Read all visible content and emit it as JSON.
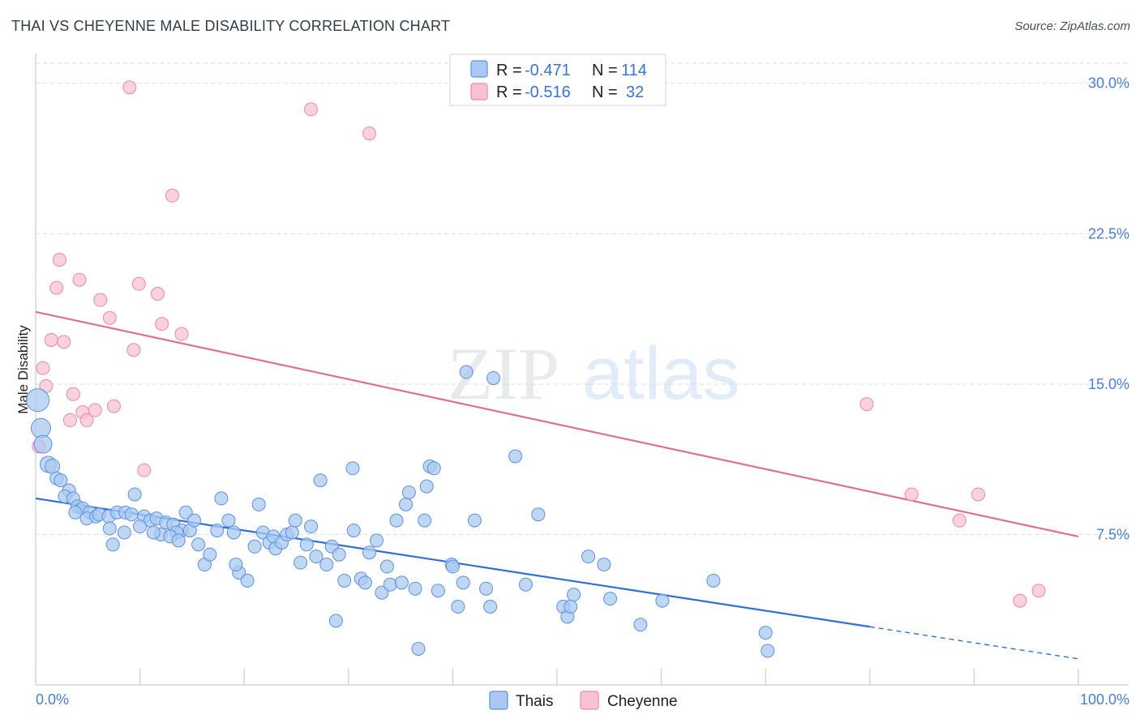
{
  "title": "THAI VS CHEYENNE MALE DISABILITY CORRELATION CHART",
  "source": "Source: ZipAtlas.com",
  "watermark": {
    "part1": "ZIP",
    "part2": "atlas"
  },
  "colors": {
    "thais_fill": "#aac8f2",
    "thais_stroke": "#5b93dd",
    "thais_line": "#2f6fd6",
    "cheyenne_fill": "#f7c3d1",
    "cheyenne_stroke": "#e98aa6",
    "cheyenne_line": "#e0708f",
    "tick_label": "#4a7fd0",
    "grid": "#d9dde3"
  },
  "legend": {
    "rows": [
      {
        "r_label": "R = ",
        "r_value": "-0.471",
        "n_label": "N = ",
        "n_value": "114"
      },
      {
        "r_label": "R = ",
        "r_value": "-0.516",
        "n_label": "N = ",
        "n_value": "32"
      }
    ]
  },
  "chart_data": {
    "type": "scatter",
    "title": "THAI VS CHEYENNE MALE DISABILITY CORRELATION CHART",
    "xlabel": "",
    "ylabel": "Male Disability",
    "xlim": [
      0,
      100
    ],
    "ylim": [
      0,
      31
    ],
    "x_tick_labels": [
      "0.0%",
      "100.0%"
    ],
    "y_ticks": [
      7.5,
      15.0,
      22.5,
      30.0
    ],
    "y_tick_labels": [
      "7.5%",
      "15.0%",
      "22.5%",
      "30.0%"
    ],
    "grid": true,
    "legend_position": "top-center",
    "series": [
      {
        "name": "Thais",
        "r": -0.471,
        "n": 114,
        "trend": {
          "x0": 0,
          "y0": 9.3,
          "x1": 100,
          "y1": 1.3,
          "solid_until": 80
        },
        "points": [
          [
            0.2,
            14.2,
            14
          ],
          [
            0.5,
            12.8,
            12
          ],
          [
            0.7,
            12.0,
            11
          ],
          [
            1.2,
            11.0,
            10
          ],
          [
            1.6,
            10.9,
            9
          ],
          [
            2.0,
            10.3,
            8
          ],
          [
            2.4,
            10.2,
            8
          ],
          [
            3.2,
            9.7,
            8
          ],
          [
            2.8,
            9.4,
            8
          ],
          [
            3.6,
            9.3,
            8
          ],
          [
            4.0,
            8.9,
            8
          ],
          [
            4.5,
            8.8,
            8
          ],
          [
            5.2,
            8.6,
            8
          ],
          [
            3.8,
            8.6,
            8
          ],
          [
            4.9,
            8.3,
            8
          ],
          [
            5.8,
            8.4,
            8
          ],
          [
            6.1,
            8.5,
            8
          ],
          [
            7.0,
            8.4,
            8
          ],
          [
            7.8,
            8.6,
            8
          ],
          [
            8.6,
            8.6,
            8
          ],
          [
            9.2,
            8.5,
            8
          ],
          [
            9.5,
            9.5,
            8
          ],
          [
            10.4,
            8.4,
            8
          ],
          [
            11.0,
            8.2,
            8
          ],
          [
            11.6,
            8.3,
            8
          ],
          [
            12.5,
            8.1,
            8
          ],
          [
            13.2,
            8.0,
            8
          ],
          [
            14.0,
            7.7,
            8
          ],
          [
            14.8,
            7.7,
            8
          ],
          [
            13.5,
            7.6,
            8
          ],
          [
            12.0,
            7.5,
            8
          ],
          [
            11.3,
            7.6,
            8
          ],
          [
            10.0,
            7.9,
            8
          ],
          [
            8.5,
            7.6,
            8
          ],
          [
            7.1,
            7.8,
            8
          ],
          [
            7.4,
            7.0,
            8
          ],
          [
            12.9,
            7.4,
            8
          ],
          [
            13.7,
            7.2,
            8
          ],
          [
            14.4,
            8.6,
            8
          ],
          [
            15.2,
            8.2,
            8
          ],
          [
            15.6,
            7.0,
            8
          ],
          [
            16.2,
            6.0,
            8
          ],
          [
            16.7,
            6.5,
            8
          ],
          [
            17.4,
            7.7,
            8
          ],
          [
            17.8,
            9.3,
            8
          ],
          [
            18.5,
            8.2,
            8
          ],
          [
            19.0,
            7.6,
            8
          ],
          [
            19.5,
            5.6,
            8
          ],
          [
            19.2,
            6.0,
            8
          ],
          [
            20.3,
            5.2,
            8
          ],
          [
            21.0,
            6.9,
            8
          ],
          [
            21.4,
            9.0,
            8
          ],
          [
            21.8,
            7.6,
            8
          ],
          [
            22.4,
            7.1,
            8
          ],
          [
            22.8,
            7.4,
            8
          ],
          [
            23.0,
            6.8,
            8
          ],
          [
            23.6,
            7.1,
            8
          ],
          [
            24.1,
            7.5,
            8
          ],
          [
            24.6,
            7.6,
            8
          ],
          [
            24.9,
            8.2,
            8
          ],
          [
            25.4,
            6.1,
            8
          ],
          [
            26.0,
            7.0,
            8
          ],
          [
            26.4,
            7.9,
            8
          ],
          [
            26.9,
            6.4,
            8
          ],
          [
            27.3,
            10.2,
            8
          ],
          [
            27.9,
            6.0,
            8
          ],
          [
            28.4,
            6.9,
            8
          ],
          [
            28.8,
            3.2,
            8
          ],
          [
            29.1,
            6.5,
            8
          ],
          [
            29.6,
            5.2,
            8
          ],
          [
            30.5,
            7.7,
            8
          ],
          [
            30.4,
            10.8,
            8
          ],
          [
            31.2,
            5.3,
            8
          ],
          [
            31.6,
            5.1,
            8
          ],
          [
            32.0,
            6.6,
            8
          ],
          [
            32.7,
            7.2,
            8
          ],
          [
            33.2,
            4.6,
            8
          ],
          [
            33.7,
            5.9,
            8
          ],
          [
            34.0,
            5.0,
            8
          ],
          [
            34.6,
            8.2,
            8
          ],
          [
            35.1,
            5.1,
            8
          ],
          [
            35.5,
            9.0,
            8
          ],
          [
            35.8,
            9.6,
            8
          ],
          [
            36.4,
            4.8,
            8
          ],
          [
            36.7,
            1.8,
            8
          ],
          [
            37.3,
            8.2,
            8
          ],
          [
            37.5,
            9.9,
            8
          ],
          [
            37.8,
            10.9,
            8
          ],
          [
            38.2,
            10.8,
            8
          ],
          [
            38.6,
            4.7,
            8
          ],
          [
            39.9,
            6.0,
            8
          ],
          [
            40.0,
            5.9,
            8
          ],
          [
            40.5,
            3.9,
            8
          ],
          [
            41.0,
            5.1,
            8
          ],
          [
            41.3,
            15.6,
            8
          ],
          [
            42.1,
            8.2,
            8
          ],
          [
            43.2,
            4.8,
            8
          ],
          [
            43.6,
            3.9,
            8
          ],
          [
            43.9,
            15.3,
            8
          ],
          [
            46.0,
            11.4,
            8
          ],
          [
            47.0,
            5.0,
            8
          ],
          [
            48.2,
            8.5,
            8
          ],
          [
            50.6,
            3.9,
            8
          ],
          [
            51.0,
            3.4,
            8
          ],
          [
            51.3,
            3.9,
            8
          ],
          [
            51.6,
            4.5,
            8
          ],
          [
            53.0,
            6.4,
            8
          ],
          [
            54.5,
            6.0,
            8
          ],
          [
            55.1,
            4.3,
            8
          ],
          [
            58.0,
            3.0,
            8
          ],
          [
            60.1,
            4.2,
            8
          ],
          [
            65.0,
            5.2,
            8
          ],
          [
            70.0,
            2.6,
            8
          ],
          [
            70.2,
            1.7,
            8
          ]
        ]
      },
      {
        "name": "Cheyenne",
        "r": -0.516,
        "n": 32,
        "trend": {
          "x0": 0,
          "y0": 18.6,
          "x1": 100,
          "y1": 7.4
        },
        "points": [
          [
            0.3,
            11.9
          ],
          [
            0.7,
            15.8
          ],
          [
            1.0,
            14.9
          ],
          [
            1.5,
            17.2
          ],
          [
            2.0,
            19.8
          ],
          [
            2.3,
            21.2
          ],
          [
            2.7,
            17.1
          ],
          [
            3.3,
            13.2
          ],
          [
            3.6,
            14.5
          ],
          [
            4.2,
            20.2
          ],
          [
            4.5,
            13.6
          ],
          [
            4.9,
            13.2
          ],
          [
            5.7,
            13.7
          ],
          [
            6.2,
            19.2
          ],
          [
            7.1,
            18.3
          ],
          [
            7.5,
            13.9
          ],
          [
            9.0,
            29.8
          ],
          [
            9.4,
            16.7
          ],
          [
            9.9,
            20.0
          ],
          [
            10.4,
            10.7
          ],
          [
            11.7,
            19.5
          ],
          [
            12.1,
            18.0
          ],
          [
            13.1,
            24.4
          ],
          [
            14.0,
            17.5
          ],
          [
            26.4,
            28.7
          ],
          [
            32.0,
            27.5
          ],
          [
            79.7,
            14.0
          ],
          [
            84.0,
            9.5
          ],
          [
            88.6,
            8.2
          ],
          [
            90.4,
            9.5
          ],
          [
            94.4,
            4.2
          ],
          [
            96.2,
            4.7
          ]
        ]
      }
    ]
  }
}
